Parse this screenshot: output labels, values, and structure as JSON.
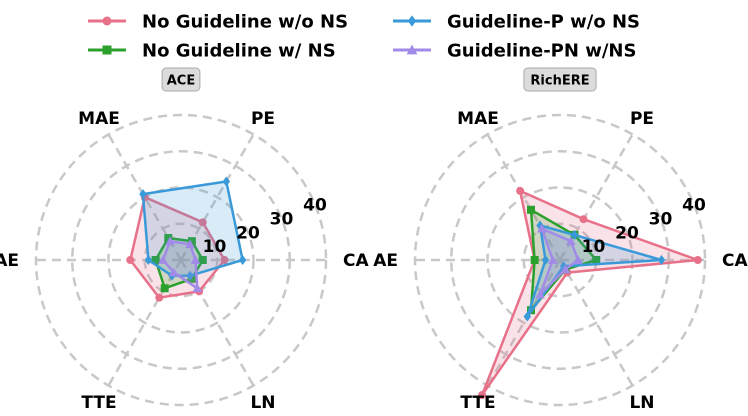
{
  "chart_data": {
    "type": "radar",
    "legend": {
      "placement": "top-center",
      "entries": [
        {
          "name": "No Guideline w/o NS",
          "color": "#e8718a",
          "marker": "circle"
        },
        {
          "name": "No Guideline w/ NS",
          "color": "#2ca02c",
          "marker": "square"
        },
        {
          "name": "Guideline-P w/o NS",
          "color": "#3a9ad9",
          "marker": "diamond"
        },
        {
          "name": "Guideline-PN w/NS",
          "color": "#a18ae8",
          "marker": "triangle"
        }
      ]
    },
    "axes": [
      "CA",
      "PE",
      "MAE",
      "AE",
      "TTE",
      "LN"
    ],
    "rlim": [
      0,
      40
    ],
    "rticks": [
      10,
      20,
      30,
      40
    ],
    "grid": true,
    "charts": [
      {
        "title": "ACE",
        "series": [
          {
            "name": "No Guideline w/o NS",
            "values": [
              12,
              12,
              20,
              14,
              12,
              10
            ]
          },
          {
            "name": "No Guideline w/ NS",
            "values": [
              6,
              6,
              7,
              7,
              9,
              6
            ]
          },
          {
            "name": "Guideline-P w/o NS",
            "values": [
              17,
              25,
              21,
              9,
              5,
              5
            ]
          },
          {
            "name": "Guideline-PN w/NS",
            "values": [
              4,
              5,
              6,
              5,
              4,
              9
            ]
          }
        ]
      },
      {
        "title": "RichERE",
        "series": [
          {
            "name": "No Guideline w/o NS",
            "values": [
              38,
              13,
              22,
              7,
              43,
              4
            ]
          },
          {
            "name": "No Guideline w/ NS",
            "values": [
              10,
              8,
              16,
              7,
              16,
              3
            ]
          },
          {
            "name": "Guideline-P w/o NS",
            "values": [
              28,
              8,
              11,
              4,
              18,
              2
            ]
          },
          {
            "name": "Guideline-PN w/NS",
            "values": [
              5,
              6,
              10,
              2,
              11,
              3
            ]
          }
        ]
      }
    ]
  }
}
